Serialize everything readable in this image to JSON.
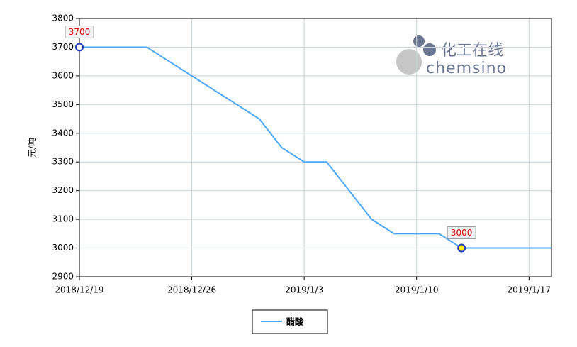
{
  "chart_data": {
    "type": "line",
    "y_label": "元/吨",
    "watermark": [
      "化工在线",
      "chemsino"
    ],
    "categories": [
      "2018/12/19",
      null,
      null,
      null,
      null,
      "2018/12/26",
      null,
      null,
      null,
      null,
      "2019/1/3",
      null,
      null,
      null,
      null,
      "2019/1/10",
      null,
      null,
      null,
      null,
      "2019/1/17",
      null
    ],
    "series": [
      {
        "name": "醋酸",
        "color": "#4da6ff",
        "values": [
          3700,
          3700,
          3700,
          3700,
          3650,
          3600,
          3550,
          3500,
          3450,
          3350,
          3300,
          3300,
          3200,
          3100,
          3050,
          3050,
          3050,
          3000,
          3000,
          3000,
          3000,
          3000
        ]
      }
    ],
    "labeled_points": [
      0,
      17
    ],
    "ylim": [
      2900,
      3800
    ],
    "yticks": [
      2900,
      3000,
      3100,
      3200,
      3300,
      3400,
      3500,
      3600,
      3700,
      3800
    ],
    "grid": true
  }
}
